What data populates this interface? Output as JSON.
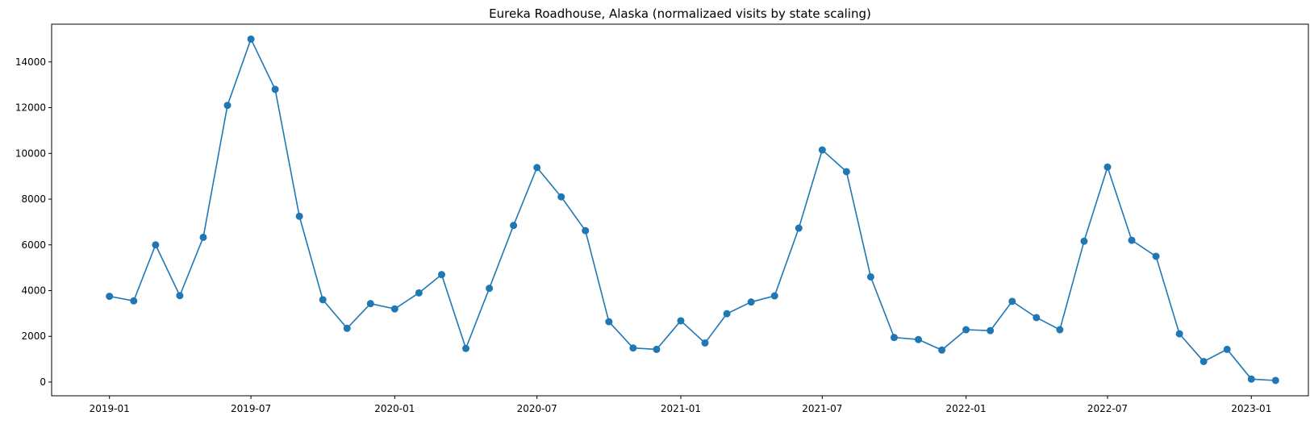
{
  "chart_data": {
    "type": "line",
    "title": "Eureka Roadhouse, Alaska (normalizaed visits by state scaling)",
    "xlabel": "",
    "ylabel": "",
    "xlim": [
      "2018-10-19",
      "2023-03-15"
    ],
    "ylim": [
      -600,
      15650
    ],
    "x_ticks": [
      "2019-01",
      "2019-07",
      "2020-01",
      "2020-07",
      "2021-01",
      "2021-07",
      "2022-01",
      "2022-07",
      "2023-01"
    ],
    "y_ticks": [
      0,
      2000,
      4000,
      6000,
      8000,
      10000,
      12000,
      14000
    ],
    "grid": false,
    "marker": "circle",
    "color": "#1f77b4",
    "series": [
      {
        "x": [
          "2019-01-01",
          "2019-02-01",
          "2019-03-01",
          "2019-04-01",
          "2019-05-01",
          "2019-06-01",
          "2019-07-01",
          "2019-08-01",
          "2019-09-01",
          "2019-10-01",
          "2019-11-01",
          "2019-12-01",
          "2020-01-01",
          "2020-02-01",
          "2020-03-01",
          "2020-04-01",
          "2020-05-01",
          "2020-06-01",
          "2020-07-01",
          "2020-08-01",
          "2020-09-01",
          "2020-10-01",
          "2020-11-01",
          "2020-12-01",
          "2021-01-01",
          "2021-02-01",
          "2021-03-01",
          "2021-04-01",
          "2021-05-01",
          "2021-06-01",
          "2021-07-01",
          "2021-08-01",
          "2021-09-01",
          "2021-10-01",
          "2021-11-01",
          "2021-12-01",
          "2022-01-01",
          "2022-02-01",
          "2022-03-01",
          "2022-04-01",
          "2022-05-01",
          "2022-06-01",
          "2022-07-01",
          "2022-08-01",
          "2022-09-01",
          "2022-10-01",
          "2022-11-01",
          "2022-12-01",
          "2023-01-01",
          "2023-02-01"
        ],
        "y": [
          3750,
          3550,
          6000,
          3780,
          6330,
          12100,
          15000,
          12800,
          7250,
          3600,
          2350,
          3430,
          3200,
          3900,
          4700,
          1470,
          4100,
          6850,
          9380,
          8100,
          6620,
          2640,
          1490,
          1430,
          2680,
          1710,
          2990,
          3500,
          3770,
          6730,
          10150,
          9200,
          4600,
          1950,
          1860,
          1400,
          2290,
          2250,
          3530,
          2820,
          2290,
          6160,
          9400,
          6200,
          5500,
          2110,
          900,
          1430,
          130,
          70
        ]
      }
    ]
  }
}
